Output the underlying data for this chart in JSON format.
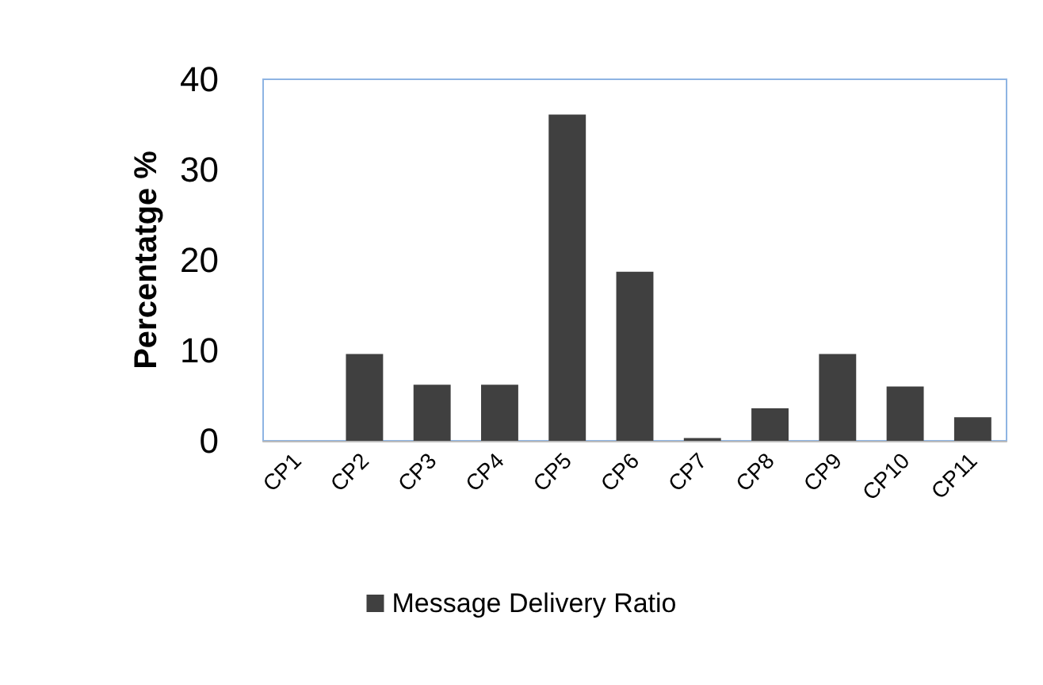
{
  "chart_data": {
    "type": "bar",
    "ylabel": "Percentatge %",
    "categories": [
      "CP1",
      "CP2",
      "CP3",
      "CP4",
      "CP5",
      "CP6",
      "CP7",
      "CP8",
      "CP9",
      "CP10",
      "CP11"
    ],
    "series": [
      {
        "name": "Message Delivery Ratio",
        "color": "#404040",
        "values": [
          0,
          9.6,
          6.2,
          6.2,
          36.1,
          18.7,
          0.3,
          3.6,
          9.6,
          6.0,
          2.6
        ]
      }
    ],
    "ylim": [
      0,
      40
    ],
    "yticks": [
      0,
      10,
      20,
      30,
      40
    ],
    "grid": false,
    "legend": "bottom"
  }
}
